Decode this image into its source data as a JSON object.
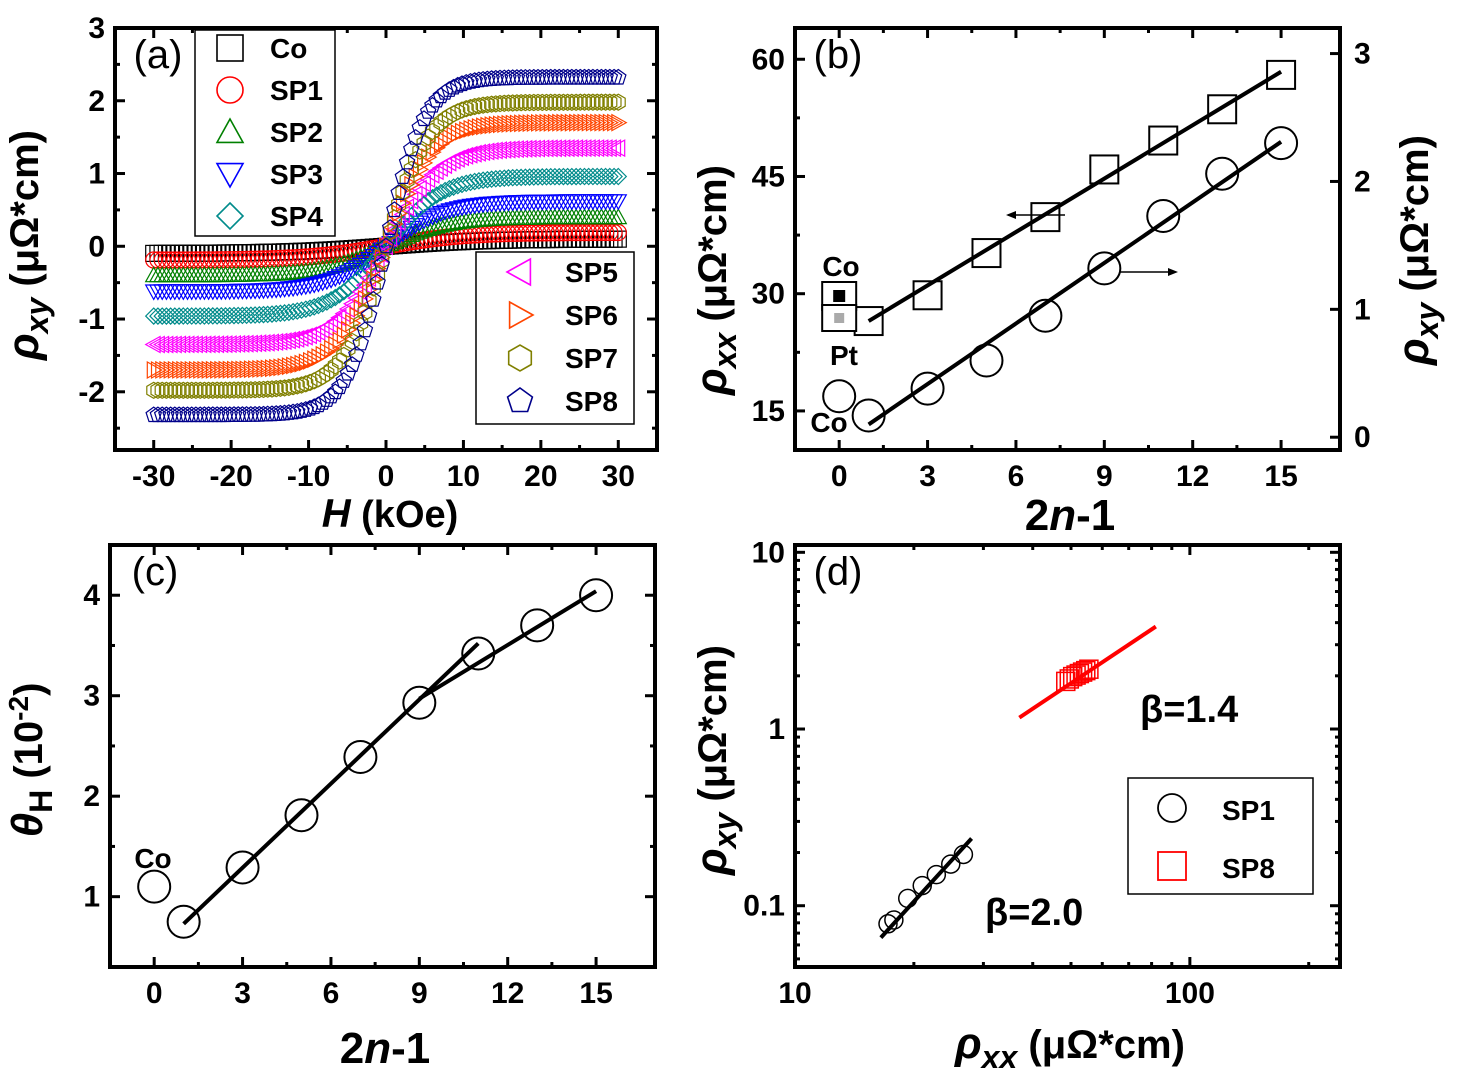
{
  "chart_data": [
    {
      "id": "a",
      "type": "scatter",
      "panel_label": "(a)",
      "xlabel": {
        "symbol": "H",
        "unit": "(kOe)"
      },
      "ylabel": {
        "symbol": "ρ",
        "sub": "xy",
        "unit": "(μΩ*cm)"
      },
      "xlim": [
        -35,
        35
      ],
      "ylim": [
        -2.8,
        3
      ],
      "xticks": [
        -30,
        -20,
        -10,
        0,
        10,
        20,
        30
      ],
      "yticks": [
        -2,
        -1,
        0,
        1,
        2,
        3
      ],
      "xtick_labels": [
        "-30",
        "-20",
        "-10",
        "0",
        "10",
        "20",
        "30"
      ],
      "ytick_labels": [
        "-2",
        "-1",
        "0",
        "1",
        "2",
        "3"
      ],
      "series": [
        {
          "name": "Co",
          "marker": "square",
          "color": "#000000",
          "sat": 0.1,
          "width": 13
        },
        {
          "name": "SP1",
          "marker": "circle",
          "color": "#ff0000",
          "sat": 0.19,
          "width": 10
        },
        {
          "name": "SP2",
          "marker": "triangle-up",
          "color": "#008000",
          "sat": 0.4,
          "width": 8
        },
        {
          "name": "SP3",
          "marker": "triangle-down",
          "color": "#0000ff",
          "sat": 0.62,
          "width": 7.5
        },
        {
          "name": "SP4",
          "marker": "diamond",
          "color": "#008b8b",
          "sat": 0.96,
          "width": 7
        },
        {
          "name": "SP5",
          "marker": "triangle-left",
          "color": "#ff00ff",
          "sat": 1.35,
          "width": 6.5
        },
        {
          "name": "SP6",
          "marker": "triangle-right",
          "color": "#ff4500",
          "sat": 1.7,
          "width": 6
        },
        {
          "name": "SP7",
          "marker": "hexagon",
          "color": "#808000",
          "sat": 1.98,
          "width": 5.5
        },
        {
          "name": "SP8",
          "marker": "pentagon",
          "color": "#00008b",
          "sat": 2.32,
          "width": 5
        }
      ]
    },
    {
      "id": "b",
      "type": "scatter",
      "panel_label": "(b)",
      "xlabel": {
        "text": "2",
        "italic": "n",
        "rest": "-1"
      },
      "ylabel_left": {
        "symbol": "ρ",
        "sub": "xx",
        "unit": "(μΩ*cm)"
      },
      "ylabel_right": {
        "symbol": "ρ",
        "sub": "xy",
        "unit": "(μΩ*cm)"
      },
      "xlim": [
        -1.5,
        17
      ],
      "ylim_left": [
        10,
        64
      ],
      "ylim_right": [
        -0.1,
        3.2
      ],
      "xticks": [
        0,
        3,
        6,
        9,
        12,
        15
      ],
      "xtick_labels": [
        "0",
        "3",
        "6",
        "9",
        "12",
        "15"
      ],
      "yticks_left": [
        15,
        30,
        45,
        60
      ],
      "ytick_labels_left": [
        "15",
        "30",
        "45",
        "60"
      ],
      "yticks_right": [
        0,
        1,
        2,
        3
      ],
      "ytick_labels_right": [
        "0",
        "1",
        "2",
        "3"
      ],
      "rho_xx": {
        "x": [
          1,
          3,
          5,
          7,
          9,
          11,
          13,
          15
        ],
        "y": [
          26.5,
          29.8,
          35.2,
          39.8,
          45.9,
          49.6,
          53.6,
          58.0
        ],
        "fit": [
          [
            1,
            26.5
          ],
          [
            15,
            58.4
          ]
        ]
      },
      "rho_xy": {
        "x": [
          0,
          1,
          3,
          5,
          7,
          9,
          11,
          13,
          15
        ],
        "y": [
          0.32,
          0.17,
          0.38,
          0.6,
          0.95,
          1.32,
          1.73,
          2.06,
          2.3
        ],
        "fit": [
          [
            1,
            0.1
          ],
          [
            15,
            2.31
          ]
        ]
      },
      "annotations": {
        "co_top": "Co",
        "pt": "Pt",
        "co_bottom": "Co"
      }
    },
    {
      "id": "c",
      "type": "scatter",
      "panel_label": "(c)",
      "xlabel": {
        "text": "2",
        "italic": "n",
        "rest": "-1"
      },
      "ylabel": {
        "symbol": "θ",
        "sub": "H",
        "unit": "(10",
        "sup": "-2",
        "close": ")"
      },
      "xlim": [
        -1.5,
        17
      ],
      "ylim": [
        0.3,
        4.5
      ],
      "xticks": [
        0,
        3,
        6,
        9,
        12,
        15
      ],
      "xtick_labels": [
        "0",
        "3",
        "6",
        "9",
        "12",
        "15"
      ],
      "yticks": [
        1,
        2,
        3,
        4
      ],
      "ytick_labels": [
        "1",
        "2",
        "3",
        "4"
      ],
      "x": [
        0,
        1,
        3,
        5,
        7,
        9,
        11,
        13,
        15
      ],
      "y": [
        1.1,
        0.75,
        1.29,
        1.81,
        2.39,
        2.93,
        3.42,
        3.7,
        4.0
      ],
      "fit1": [
        [
          1,
          0.73
        ],
        [
          11,
          3.52
        ]
      ],
      "fit2": [
        [
          9,
          2.97
        ],
        [
          15,
          4.04
        ]
      ],
      "annotation": "Co"
    },
    {
      "id": "d",
      "type": "scatter",
      "panel_label": "(d)",
      "xlabel": {
        "symbol": "ρ",
        "sub": "xx",
        "unit": "(μΩ*cm)"
      },
      "ylabel": {
        "symbol": "ρ",
        "sub": "xy",
        "unit": "(μΩ*cm)"
      },
      "xscale": "log",
      "yscale": "log",
      "xlim": [
        10,
        240
      ],
      "ylim": [
        0.045,
        11
      ],
      "xticks": [
        10,
        100
      ],
      "xtick_labels": [
        "10",
        "100"
      ],
      "yticks": [
        0.1,
        1,
        10
      ],
      "ytick_labels": [
        "0.1",
        "1",
        "10"
      ],
      "series": [
        {
          "name": "SP1",
          "marker": "circle",
          "color": "#000000",
          "x": [
            17.2,
            17.8,
            19.3,
            21.0,
            22.8,
            24.8,
            26.7
          ],
          "y": [
            0.079,
            0.083,
            0.11,
            0.13,
            0.15,
            0.172,
            0.195
          ],
          "fit": [
            [
              16.5,
              0.066
            ],
            [
              28,
              0.24
            ]
          ],
          "beta": "β=2.0"
        },
        {
          "name": "SP8",
          "marker": "square",
          "color": "#ff0000",
          "x": [
            48.5,
            49.5,
            50.5,
            51.5,
            52.5,
            53.5,
            54.5,
            55.5
          ],
          "y": [
            1.86,
            1.92,
            1.98,
            2.02,
            2.06,
            2.1,
            2.14,
            2.18
          ],
          "fit": [
            [
              37,
              1.16
            ],
            [
              82,
              3.8
            ]
          ],
          "beta": "β=1.4"
        }
      ]
    }
  ]
}
